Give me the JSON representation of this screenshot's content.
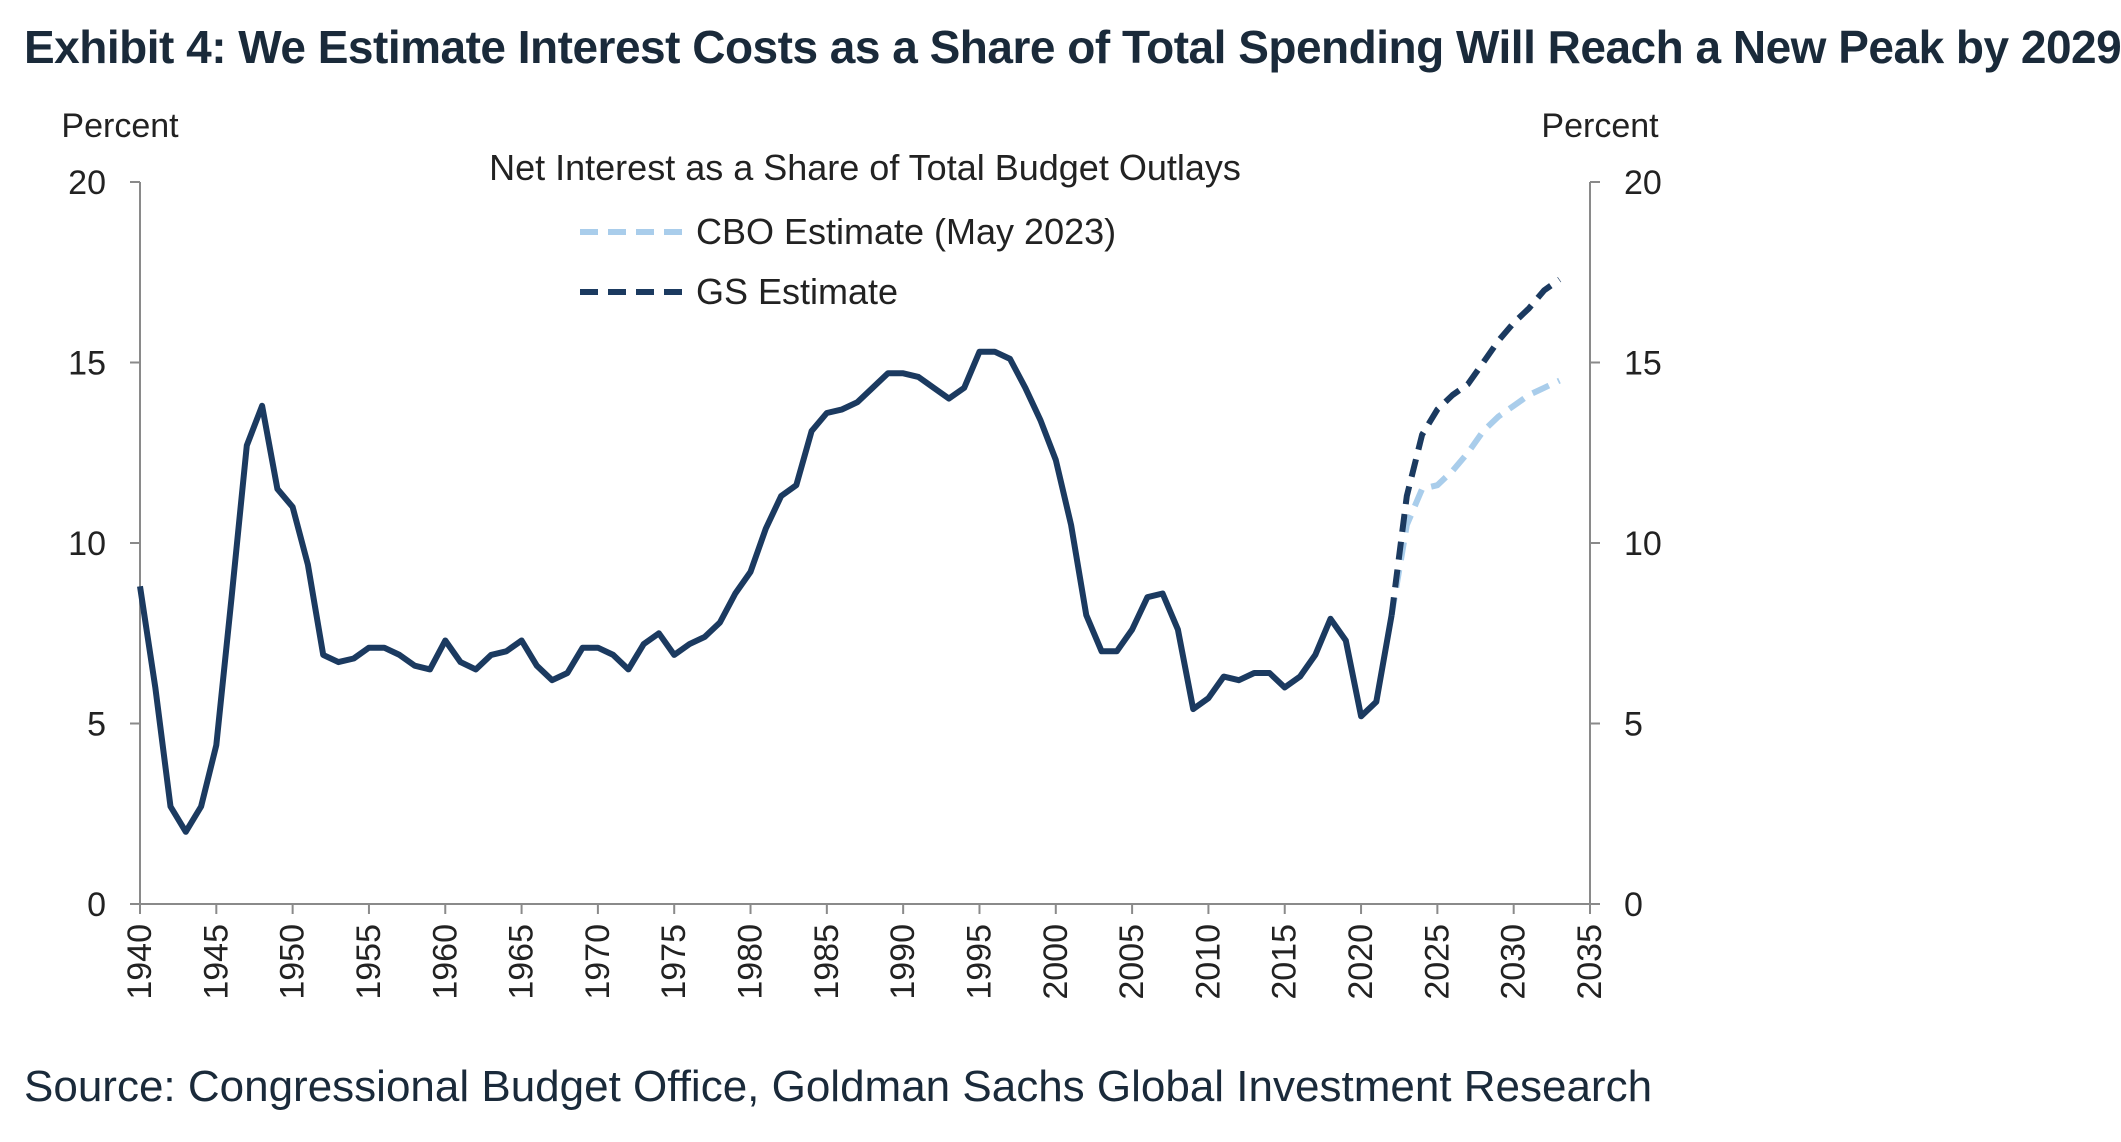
{
  "header": {
    "title": "Exhibit 4: We Estimate Interest Costs as a Share of Total Spending Will Reach a New Peak by 2029"
  },
  "footer": {
    "source": "Source: Congressional Budget Office, Goldman Sachs Global Investment Research"
  },
  "chart_data": {
    "type": "line",
    "title": "Net Interest as a Share of Total Budget Outlays",
    "y_left_label": "Percent",
    "y_right_label": "Percent",
    "ylim": [
      0,
      20
    ],
    "yticks": [
      0,
      5,
      10,
      15,
      20
    ],
    "xlim": [
      1940,
      2035
    ],
    "xticks": [
      1940,
      1945,
      1950,
      1955,
      1960,
      1965,
      1970,
      1975,
      1980,
      1985,
      1990,
      1995,
      2000,
      2005,
      2010,
      2015,
      2020,
      2025,
      2030,
      2035
    ],
    "legend_position": "top-center",
    "grid": false,
    "series": [
      {
        "name": "",
        "style": "solid",
        "color": "#1b3a60",
        "x": [
          1940,
          1941,
          1942,
          1943,
          1944,
          1945,
          1946,
          1947,
          1948,
          1949,
          1950,
          1951,
          1952,
          1953,
          1954,
          1955,
          1956,
          1957,
          1958,
          1959,
          1960,
          1961,
          1962,
          1963,
          1964,
          1965,
          1966,
          1967,
          1968,
          1969,
          1970,
          1971,
          1972,
          1973,
          1974,
          1975,
          1976,
          1977,
          1978,
          1979,
          1980,
          1981,
          1982,
          1983,
          1984,
          1985,
          1986,
          1987,
          1988,
          1989,
          1990,
          1991,
          1992,
          1993,
          1994,
          1995,
          1996,
          1997,
          1998,
          1999,
          2000,
          2001,
          2002,
          2003,
          2004,
          2005,
          2006,
          2007,
          2008,
          2009,
          2010,
          2011,
          2012,
          2013,
          2014,
          2015,
          2016,
          2017,
          2018,
          2019,
          2020,
          2021,
          2022
        ],
        "y": [
          8.8,
          6.0,
          2.7,
          2.0,
          2.7,
          4.4,
          8.5,
          12.7,
          13.8,
          11.5,
          11.0,
          9.4,
          6.9,
          6.7,
          6.8,
          7.1,
          7.1,
          6.9,
          6.6,
          6.5,
          7.3,
          6.7,
          6.5,
          6.9,
          7.0,
          7.3,
          6.6,
          6.2,
          6.4,
          7.1,
          7.1,
          6.9,
          6.5,
          7.2,
          7.5,
          6.9,
          7.2,
          7.4,
          7.8,
          8.6,
          9.2,
          10.4,
          11.3,
          11.6,
          13.1,
          13.6,
          13.7,
          13.9,
          14.3,
          14.7,
          14.7,
          14.6,
          14.3,
          14.0,
          14.3,
          15.3,
          15.3,
          15.1,
          14.3,
          13.4,
          12.3,
          10.5,
          8.0,
          7.0,
          7.0,
          7.6,
          8.5,
          8.6,
          7.6,
          5.4,
          5.7,
          6.3,
          6.2,
          6.4,
          6.4,
          6.0,
          6.3,
          6.9,
          7.9,
          7.3,
          5.2,
          5.6,
          8.0
        ]
      },
      {
        "name": "CBO Estimate (May 2023)",
        "style": "dashed",
        "color": "#a9cdeb",
        "x": [
          2022,
          2023,
          2024,
          2025,
          2026,
          2027,
          2028,
          2029,
          2030,
          2031,
          2032,
          2033
        ],
        "y": [
          8.0,
          10.5,
          11.5,
          11.6,
          12.0,
          12.5,
          13.1,
          13.5,
          13.8,
          14.1,
          14.3,
          14.5
        ]
      },
      {
        "name": "GS Estimate",
        "style": "dashed",
        "color": "#1b3a60",
        "x": [
          2022,
          2023,
          2024,
          2025,
          2026,
          2027,
          2028,
          2029,
          2030,
          2031,
          2032,
          2033
        ],
        "y": [
          8.0,
          11.3,
          13.0,
          13.7,
          14.1,
          14.4,
          15.0,
          15.6,
          16.1,
          16.5,
          17.0,
          17.3
        ]
      }
    ]
  }
}
